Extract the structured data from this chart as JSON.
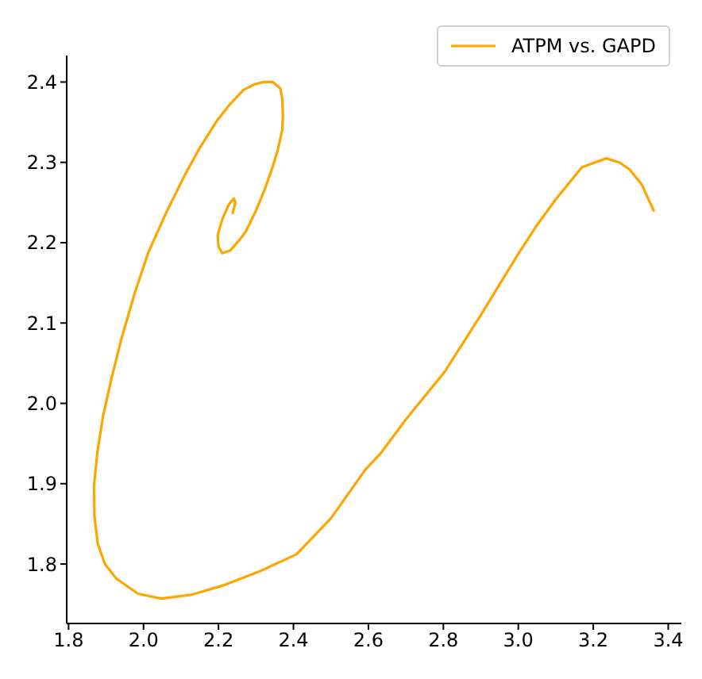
{
  "chart_data": {
    "type": "line",
    "series": [
      {
        "name": "ATPM vs. GAPD",
        "color": "#ffa500",
        "x": [
          2.238,
          2.245,
          2.241,
          2.228,
          2.21,
          2.198,
          2.2,
          2.21,
          2.231,
          2.255,
          2.273,
          2.3,
          2.323,
          2.345,
          2.358,
          2.37,
          2.372,
          2.37,
          2.365,
          2.345,
          2.32,
          2.295,
          2.266,
          2.23,
          2.196,
          2.15,
          2.111,
          2.06,
          2.012,
          1.975,
          1.942,
          1.915,
          1.892,
          1.877,
          1.868,
          1.869,
          1.878,
          1.897,
          1.927,
          1.985,
          2.047,
          2.13,
          2.21,
          2.31,
          2.408,
          2.5,
          2.591,
          2.633,
          2.7,
          2.803,
          2.9,
          3.001,
          3.05,
          3.1,
          3.17,
          3.234,
          3.27,
          3.297,
          3.33,
          3.361
        ],
        "values": [
          2.237,
          2.25,
          2.255,
          2.248,
          2.229,
          2.21,
          2.195,
          2.187,
          2.19,
          2.203,
          2.214,
          2.24,
          2.266,
          2.295,
          2.315,
          2.34,
          2.358,
          2.38,
          2.392,
          2.4,
          2.4,
          2.397,
          2.39,
          2.372,
          2.352,
          2.318,
          2.285,
          2.237,
          2.187,
          2.135,
          2.082,
          2.032,
          1.984,
          1.94,
          1.898,
          1.86,
          1.825,
          1.8,
          1.782,
          1.763,
          1.757,
          1.762,
          1.773,
          1.791,
          1.812,
          1.857,
          1.917,
          1.938,
          1.98,
          2.039,
          2.11,
          2.187,
          2.222,
          2.254,
          2.294,
          2.305,
          2.3,
          2.291,
          2.272,
          2.24
        ]
      }
    ],
    "xlim": [
      1.795,
      3.435
    ],
    "ylim": [
      1.726,
      2.433
    ],
    "xticks": [
      1.8,
      {
        "value": 2,
        "label": "2.0"
      },
      2.2,
      2.4,
      2.6,
      2.8,
      {
        "value": 3,
        "label": "3.0"
      },
      3.2,
      3.4
    ],
    "yticks": [
      1.8,
      1.9,
      {
        "value": 2,
        "label": "2.0"
      },
      2.1,
      2.2,
      2.3,
      2.4
    ],
    "legend": "top right",
    "marker": "none",
    "line_style": "solid",
    "grid": false
  }
}
